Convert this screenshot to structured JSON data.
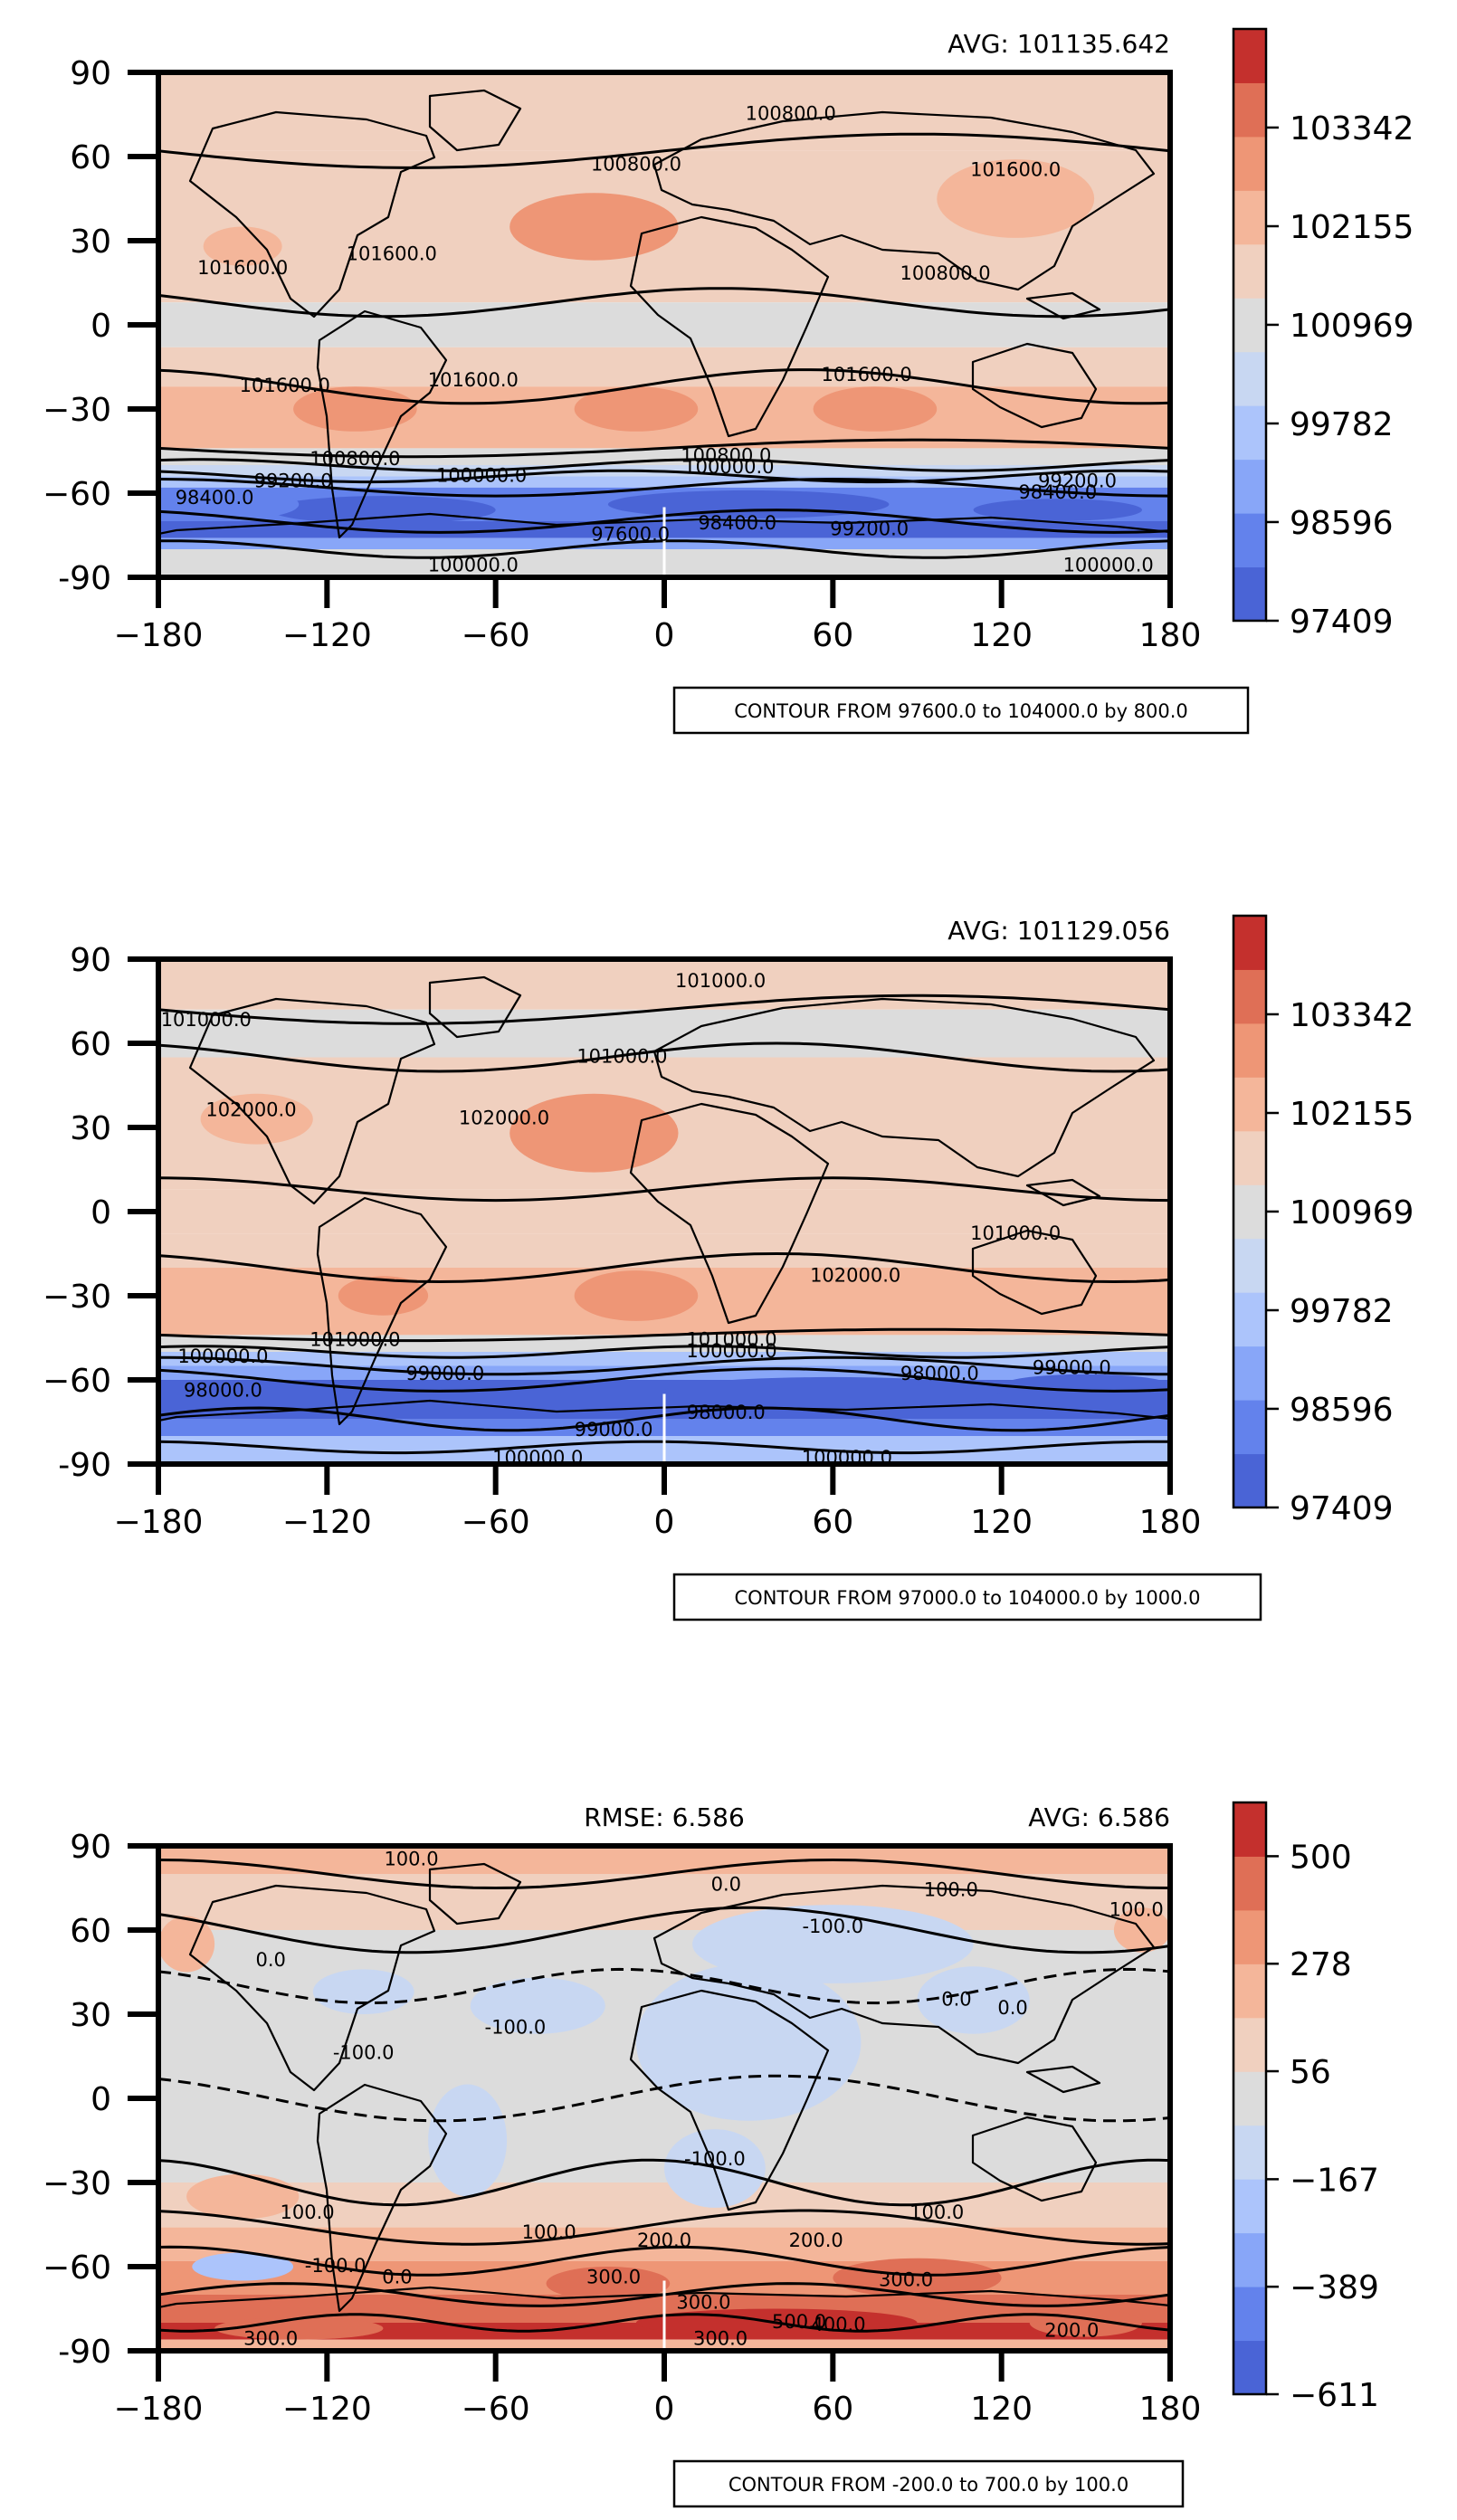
{
  "colors": {
    "scale": [
      "#4a64d6",
      "#6382ec",
      "#88a6f8",
      "#acc4fb",
      "#c8d7f2",
      "#dcdcdc",
      "#f0d0bf",
      "#f4b69a",
      "#ee9676",
      "#df6f56",
      "#c4302d"
    ],
    "land": "#000000"
  },
  "chart_data": [
    {
      "type": "heatmap",
      "name": "panel-1",
      "avg_label": "AVG: 101135.642",
      "rmse_label": "",
      "contour_note": "CONTOUR FROM 97600.0 to 104000.0 by 800.0",
      "xlim": [
        -180,
        180
      ],
      "ylim": [
        -90,
        90
      ],
      "x_ticks": [
        "−180",
        "−120",
        "−60",
        "0",
        "60",
        "120",
        "180"
      ],
      "y_ticks": [
        "90",
        "60",
        "30",
        "0",
        "−30",
        "−60",
        "-90"
      ],
      "colorbar_range": [
        97409,
        104528
      ],
      "colorbar_ticks": [
        "103342",
        "102155",
        "100969",
        "99782",
        "98596",
        "97409"
      ],
      "colorbar_tick_values": [
        103342,
        102155,
        100969,
        99782,
        98596,
        97409
      ],
      "contour_labels": [
        {
          "text": "100800.0",
          "lon": -10,
          "lat": 57
        },
        {
          "text": "100800.0",
          "lon": 45,
          "lat": 75
        },
        {
          "text": "101600.0",
          "lon": -150,
          "lat": 20
        },
        {
          "text": "101600.0",
          "lon": -97,
          "lat": 25
        },
        {
          "text": "101600.0",
          "lon": -135,
          "lat": -22
        },
        {
          "text": "101600.0",
          "lon": -68,
          "lat": -20
        },
        {
          "text": "101600.0",
          "lon": 72,
          "lat": -18
        },
        {
          "text": "101600.0",
          "lon": 125,
          "lat": 55
        },
        {
          "text": "100800.0",
          "lon": 100,
          "lat": 18
        },
        {
          "text": "100800.0",
          "lon": -110,
          "lat": -48
        },
        {
          "text": "100800.0",
          "lon": 22,
          "lat": -47
        },
        {
          "text": "100000.0",
          "lon": -65,
          "lat": -54
        },
        {
          "text": "100000.0",
          "lon": 23,
          "lat": -51
        },
        {
          "text": "99200.0",
          "lon": -132,
          "lat": -56
        },
        {
          "text": "98400.0",
          "lon": -160,
          "lat": -62
        },
        {
          "text": "99200.0",
          "lon": 147,
          "lat": -56
        },
        {
          "text": "98400.0",
          "lon": 140,
          "lat": -60
        },
        {
          "text": "99200.0",
          "lon": 73,
          "lat": -73
        },
        {
          "text": "98400.0",
          "lon": 26,
          "lat": -71
        },
        {
          "text": "100000.0",
          "lon": -68,
          "lat": -86
        },
        {
          "text": "100000.0",
          "lon": 158,
          "lat": -86
        },
        {
          "text": "97600.0",
          "lon": -12,
          "lat": -75
        }
      ]
    },
    {
      "type": "heatmap",
      "name": "panel-2",
      "avg_label": "AVG: 101129.056",
      "rmse_label": "",
      "contour_note": "CONTOUR FROM 97000.0 to 104000.0 by 1000.0",
      "xlim": [
        -180,
        180
      ],
      "ylim": [
        -90,
        90
      ],
      "x_ticks": [
        "−180",
        "−120",
        "−60",
        "0",
        "60",
        "120",
        "180"
      ],
      "y_ticks": [
        "90",
        "60",
        "30",
        "0",
        "−30",
        "−60",
        "-90"
      ],
      "colorbar_range": [
        97409,
        104528
      ],
      "colorbar_ticks": [
        "103342",
        "102155",
        "100969",
        "99782",
        "98596",
        "97409"
      ],
      "colorbar_tick_values": [
        103342,
        102155,
        100969,
        99782,
        98596,
        97409
      ],
      "contour_labels": [
        {
          "text": "101000.0",
          "lon": 20,
          "lat": 82
        },
        {
          "text": "101000.0",
          "lon": -163,
          "lat": 68
        },
        {
          "text": "101000.0",
          "lon": -15,
          "lat": 55
        },
        {
          "text": "102000.0",
          "lon": -147,
          "lat": 36
        },
        {
          "text": "102000.0",
          "lon": -57,
          "lat": 33
        },
        {
          "text": "102000.0",
          "lon": 68,
          "lat": -23
        },
        {
          "text": "101000.0",
          "lon": 125,
          "lat": -8
        },
        {
          "text": "101000.0",
          "lon": -110,
          "lat": -46
        },
        {
          "text": "101000.0",
          "lon": 24,
          "lat": -46
        },
        {
          "text": "100000.0",
          "lon": -157,
          "lat": -52
        },
        {
          "text": "100000.0",
          "lon": 24,
          "lat": -50
        },
        {
          "text": "99000.0",
          "lon": -78,
          "lat": -58
        },
        {
          "text": "98000.0",
          "lon": -157,
          "lat": -64
        },
        {
          "text": "98000.0",
          "lon": 98,
          "lat": -58
        },
        {
          "text": "99000.0",
          "lon": 145,
          "lat": -56
        },
        {
          "text": "99000.0",
          "lon": -18,
          "lat": -78
        },
        {
          "text": "98000.0",
          "lon": 22,
          "lat": -72
        },
        {
          "text": "100000.0",
          "lon": 65,
          "lat": -88
        },
        {
          "text": "100000.0",
          "lon": -45,
          "lat": -88
        }
      ]
    },
    {
      "type": "heatmap",
      "name": "panel-3",
      "avg_label": "AVG: 6.586",
      "rmse_label": "RMSE: 6.586",
      "contour_note": "CONTOUR FROM -200.0 to 700.0 by 100.0",
      "xlim": [
        -180,
        180
      ],
      "ylim": [
        -90,
        90
      ],
      "x_ticks": [
        "−180",
        "−120",
        "−60",
        "0",
        "60",
        "120",
        "180"
      ],
      "y_ticks": [
        "90",
        "60",
        "30",
        "0",
        "−30",
        "−60",
        "-90"
      ],
      "colorbar_range": [
        -611,
        611
      ],
      "colorbar_ticks": [
        "500",
        "278",
        "56",
        "−167",
        "−389",
        "−611"
      ],
      "colorbar_tick_values": [
        500,
        278,
        56,
        -167,
        -389,
        -611
      ],
      "contour_labels": [
        {
          "text": "100.0",
          "lon": -90,
          "lat": 85
        },
        {
          "text": "0.0",
          "lon": 22,
          "lat": 76
        },
        {
          "text": "100.0",
          "lon": 102,
          "lat": 74
        },
        {
          "text": "-100.0",
          "lon": 60,
          "lat": 61
        },
        {
          "text": "100.0",
          "lon": 168,
          "lat": 67
        },
        {
          "text": "0.0",
          "lon": -140,
          "lat": 49
        },
        {
          "text": "-100.0",
          "lon": -53,
          "lat": 25
        },
        {
          "text": "-100.0",
          "lon": -107,
          "lat": 16
        },
        {
          "text": "0.0",
          "lon": 104,
          "lat": 35
        },
        {
          "text": "0.0",
          "lon": 124,
          "lat": 32
        },
        {
          "text": "-100.0",
          "lon": 18,
          "lat": -22
        },
        {
          "text": "100.0",
          "lon": -127,
          "lat": -41
        },
        {
          "text": "-100.0",
          "lon": -117,
          "lat": -60
        },
        {
          "text": "0.0",
          "lon": -95,
          "lat": -64
        },
        {
          "text": "100.0",
          "lon": -41,
          "lat": -48
        },
        {
          "text": "200.0",
          "lon": 0,
          "lat": -51
        },
        {
          "text": "200.0",
          "lon": 54,
          "lat": -51
        },
        {
          "text": "100.0",
          "lon": 97,
          "lat": -41
        },
        {
          "text": "300.0",
          "lon": -18,
          "lat": -64
        },
        {
          "text": "300.0",
          "lon": 86,
          "lat": -65
        },
        {
          "text": "300.0",
          "lon": 14,
          "lat": -73
        },
        {
          "text": "500.0",
          "lon": 48,
          "lat": -80
        },
        {
          "text": "400.0",
          "lon": 62,
          "lat": -81
        },
        {
          "text": "300.0",
          "lon": -140,
          "lat": -86
        },
        {
          "text": "300.0",
          "lon": 20,
          "lat": -86
        },
        {
          "text": "200.0",
          "lon": 145,
          "lat": -83
        }
      ]
    }
  ]
}
